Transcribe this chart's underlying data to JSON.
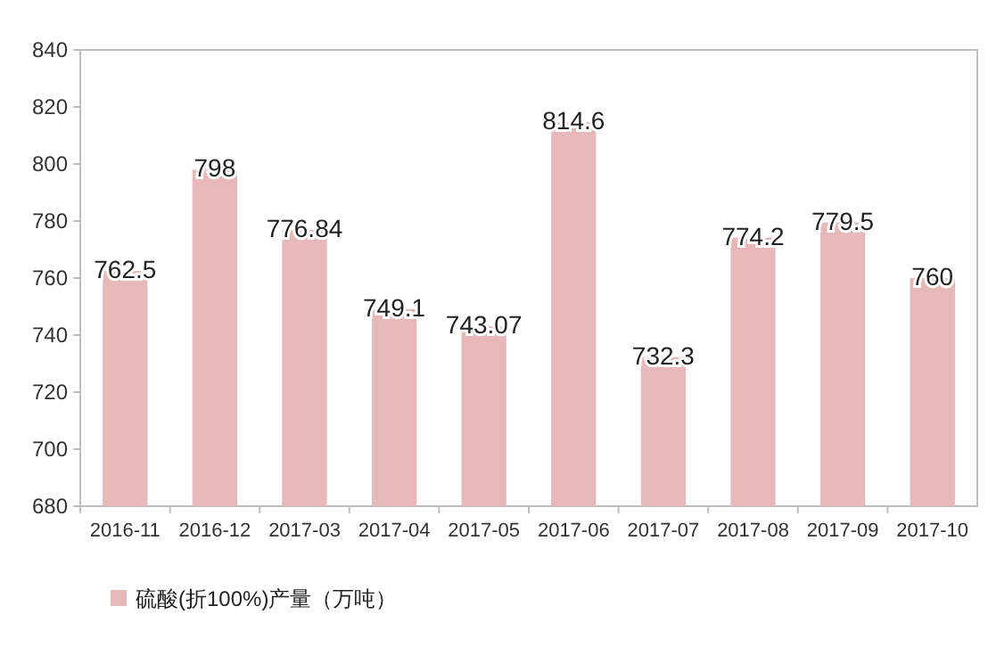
{
  "chart_data": {
    "type": "bar",
    "categories": [
      "2016-11",
      "2016-12",
      "2017-03",
      "2017-04",
      "2017-05",
      "2017-06",
      "2017-07",
      "2017-08",
      "2017-09",
      "2017-10"
    ],
    "series": [
      {
        "name": "硫酸(折100%)产量（万吨）",
        "color": "#e6b9b8",
        "values": [
          762.5,
          798,
          776.84,
          749.1,
          743.07,
          814.6,
          732.3,
          774.2,
          779.5,
          760
        ]
      }
    ],
    "ylim": [
      680,
      840
    ],
    "yticks": [
      680,
      700,
      720,
      740,
      760,
      780,
      800,
      820,
      840
    ],
    "data_labels": true,
    "legend": "bottom",
    "grid": false
  }
}
